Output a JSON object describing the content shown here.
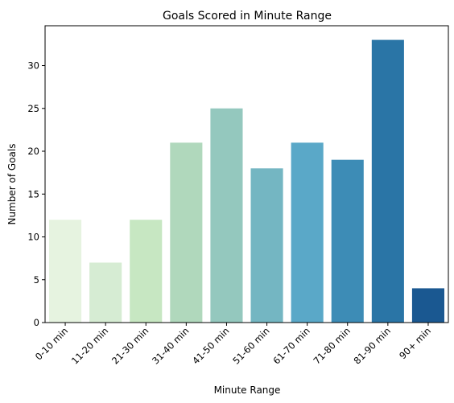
{
  "chart_data": {
    "type": "bar",
    "title": "Goals Scored in Minute Range",
    "xlabel": "Minute Range",
    "ylabel": "Number of Goals",
    "categories": [
      "0-10 min",
      "11-20 min",
      "21-30 min",
      "31-40 min",
      "41-50 min",
      "51-60 min",
      "61-70 min",
      "71-80 min",
      "81-90 min",
      "90+ min"
    ],
    "values": [
      12,
      7,
      12,
      21,
      25,
      18,
      21,
      19,
      33,
      4
    ],
    "colors": [
      "#e6f3e0",
      "#d6ecd3",
      "#c7e7c2",
      "#b0d8bc",
      "#94c8be",
      "#74b6c2",
      "#5aa8c8",
      "#3d8cb6",
      "#2a75a6",
      "#1a5891"
    ],
    "ylim": [
      0,
      34.65
    ],
    "yticks": [
      0,
      5,
      10,
      15,
      20,
      25,
      30
    ],
    "grid": false,
    "legend": "none"
  }
}
